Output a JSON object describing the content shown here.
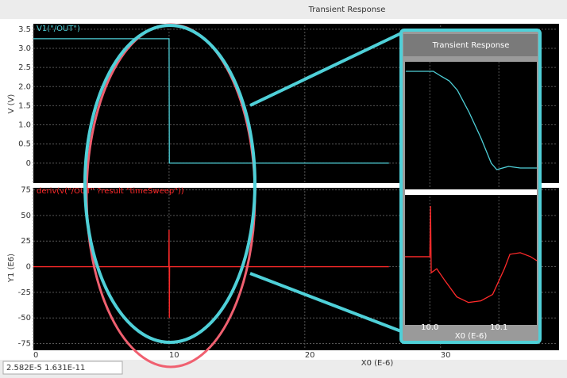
{
  "status": "2.582E-5 1.631E-11",
  "chart_data": [
    {
      "type": "line",
      "title": "Transient Response",
      "ylabel": "V (V)",
      "x": [
        0,
        10,
        10.02,
        26.2
      ],
      "series": [
        {
          "name": "V1(\"/OUT\")",
          "color": "#4fd0d8",
          "values": [
            3.25,
            3.25,
            0,
            0
          ]
        }
      ],
      "xlim": [
        0,
        38.5
      ],
      "ylim": [
        -0.5,
        3.6
      ],
      "yticks": [
        0,
        0.5,
        {
          "value": 1,
          "label": "1.0"
        },
        1.5,
        {
          "value": 2,
          "label": "2.0"
        },
        2.5,
        {
          "value": 3,
          "label": "3.0"
        },
        3.5
      ],
      "grid": true
    },
    {
      "type": "line",
      "ylabel": "Y1 (E6)",
      "xlabel": "X0 (E-6)",
      "x": [
        0,
        9.98,
        10,
        10.02,
        10.04,
        26.2
      ],
      "series": [
        {
          "name": "deriv(v(\"/OUT\" ?result \"timeSweep\"))",
          "color": "#ff2a2a",
          "values": [
            0,
            0,
            36,
            -50,
            0,
            0
          ]
        }
      ],
      "xlim": [
        0,
        38.5
      ],
      "ylim": [
        -80,
        77
      ],
      "xticks": [
        0,
        10,
        20,
        30
      ],
      "yticks": [
        -75,
        -50,
        -25,
        0,
        25,
        50,
        75
      ],
      "grid": true
    },
    {
      "type": "line",
      "title": "Transient Response",
      "x": [
        9.965,
        10.005,
        10.016,
        10.028,
        10.04,
        10.057,
        10.074,
        10.089,
        10.097,
        10.114,
        10.131,
        10.155
      ],
      "series": [
        {
          "color": "#4fd0d8",
          "values": [
            3.2,
            3.2,
            3.05,
            2.9,
            2.6,
            1.9,
            1.1,
            0.3,
            0.1,
            0.2,
            0.15,
            0.15
          ]
        }
      ],
      "xlim": [
        9.964,
        10.155
      ],
      "ylim": [
        -0.5,
        3.5
      ],
      "grid": true
    },
    {
      "type": "line",
      "xlabel": "X0 (E-6)",
      "x": [
        9.964,
        10,
        10.001,
        10.002,
        10.01,
        10.022,
        10.039,
        10.056,
        10.074,
        10.091,
        10.108,
        10.116,
        10.131,
        10.146,
        10.155
      ],
      "series": [
        {
          "color": "#ff2a2a",
          "values": [
            3.75,
            3.75,
            51,
            -11.25,
            -7.5,
            -18.75,
            -33.75,
            -39,
            -37.5,
            -31.5,
            -7.5,
            6,
            7.5,
            3.75,
            0
          ]
        }
      ],
      "xlim": [
        9.964,
        10.155
      ],
      "ylim": [
        -60,
        60
      ],
      "xticks": [
        {
          "value": 10,
          "label": "10.0"
        },
        {
          "value": 10.1,
          "label": "10.1"
        }
      ],
      "grid": true
    }
  ]
}
